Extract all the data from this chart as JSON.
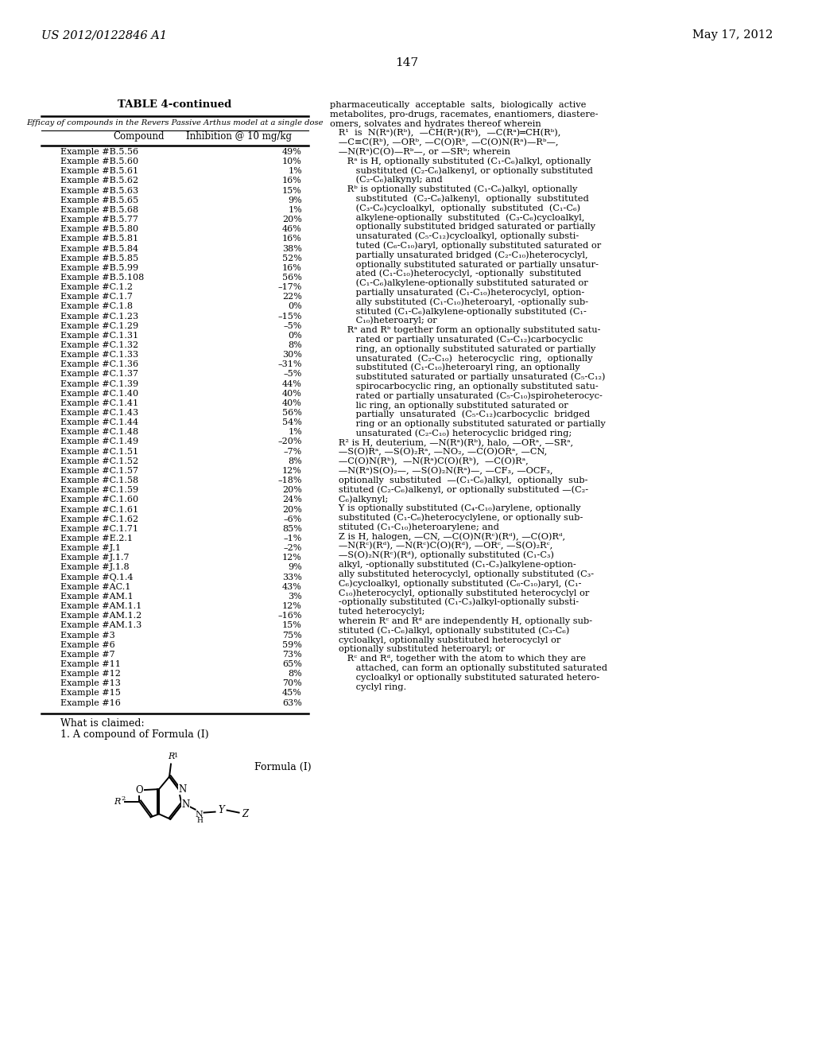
{
  "page_header_left": "US 2012/0122846 A1",
  "page_header_right": "May 17, 2012",
  "page_number": "147",
  "table_title": "TABLE 4-continued",
  "table_subtitle": "Efficay of compounds in the Revers Passive Arthus model at a single dose",
  "col1_header": "Compound",
  "col2_header": "Inhibition @ 10 mg/kg",
  "table_data": [
    [
      "Example #B.5.56",
      "49%"
    ],
    [
      "Example #B.5.60",
      "10%"
    ],
    [
      "Example #B.5.61",
      "1%"
    ],
    [
      "Example #B.5.62",
      "16%"
    ],
    [
      "Example #B.5.63",
      "15%"
    ],
    [
      "Example #B.5.65",
      "9%"
    ],
    [
      "Example #B.5.68",
      "1%"
    ],
    [
      "Example #B.5.77",
      "20%"
    ],
    [
      "Example #B.5.80",
      "46%"
    ],
    [
      "Example #B.5.81",
      "16%"
    ],
    [
      "Example #B.5.84",
      "38%"
    ],
    [
      "Example #B.5.85",
      "52%"
    ],
    [
      "Example #B.5.99",
      "16%"
    ],
    [
      "Example #B.5.108",
      "56%"
    ],
    [
      "Example #C.1.2",
      "–17%"
    ],
    [
      "Example #C.1.7",
      "22%"
    ],
    [
      "Example #C.1.8",
      "0%"
    ],
    [
      "Example #C.1.23",
      "–15%"
    ],
    [
      "Example #C.1.29",
      "–5%"
    ],
    [
      "Example #C.1.31",
      "0%"
    ],
    [
      "Example #C.1.32",
      "8%"
    ],
    [
      "Example #C.1.33",
      "30%"
    ],
    [
      "Example #C.1.36",
      "–31%"
    ],
    [
      "Example #C.1.37",
      "–5%"
    ],
    [
      "Example #C.1.39",
      "44%"
    ],
    [
      "Example #C.1.40",
      "40%"
    ],
    [
      "Example #C.1.41",
      "40%"
    ],
    [
      "Example #C.1.43",
      "56%"
    ],
    [
      "Example #C.1.44",
      "54%"
    ],
    [
      "Example #C.1.48",
      "1%"
    ],
    [
      "Example #C.1.49",
      "–20%"
    ],
    [
      "Example #C.1.51",
      "–7%"
    ],
    [
      "Example #C.1.52",
      "8%"
    ],
    [
      "Example #C.1.57",
      "12%"
    ],
    [
      "Example #C.1.58",
      "–18%"
    ],
    [
      "Example #C.1.59",
      "20%"
    ],
    [
      "Example #C.1.60",
      "24%"
    ],
    [
      "Example #C.1.61",
      "20%"
    ],
    [
      "Example #C.1.62",
      "–6%"
    ],
    [
      "Example #C.1.71",
      "85%"
    ],
    [
      "Example #E.2.1",
      "–1%"
    ],
    [
      "Example #J.1",
      "–2%"
    ],
    [
      "Example #J.1.7",
      "12%"
    ],
    [
      "Example #J.1.8",
      "9%"
    ],
    [
      "Example #Q.1.4",
      "33%"
    ],
    [
      "Example #AC.1",
      "43%"
    ],
    [
      "Example #AM.1",
      "3%"
    ],
    [
      "Example #AM.1.1",
      "12%"
    ],
    [
      "Example #AM.1.2",
      "–16%"
    ],
    [
      "Example #AM.1.3",
      "15%"
    ],
    [
      "Example #3",
      "75%"
    ],
    [
      "Example #6",
      "59%"
    ],
    [
      "Example #7",
      "73%"
    ],
    [
      "Example #11",
      "65%"
    ],
    [
      "Example #12",
      "8%"
    ],
    [
      "Example #13",
      "70%"
    ],
    [
      "Example #15",
      "45%"
    ],
    [
      "Example #16",
      "63%"
    ]
  ],
  "right_col_lines": [
    "pharmaceutically  acceptable  salts,  biologically  active",
    "metabolites, pro-drugs, racemates, enantiomers, diastere-",
    "omers, solvates and hydrates thereof wherein",
    "   R¹  is  N(Rᵃ)(Rᵇ),  —CH(Rᵃ)(Rᵇ),  —C(Rᵃ)═CH(Rᵇ),",
    "   —C≡C(Rᵇ), —ORᵇ, —C(O)Rᵇ, —C(O)N(Rᵃ)—Rᵇ—,",
    "   —N(Rᵃ)C(O)—Rᵇ—, or —SRᵇ; wherein",
    "      Rᵃ is H, optionally substituted (C₁-C₆)alkyl, optionally",
    "         substituted (C₂-C₆)alkenyl, or optionally substituted",
    "         (C₂-C₆)alkynyl; and",
    "      Rᵇ is optionally substituted (C₁-C₆)alkyl, optionally",
    "         substituted  (C₂-C₆)alkenyl,  optionally  substituted",
    "         (C₃-C₆)cycloalkyl,  optionally  substituted  (C₁-C₆)",
    "         alkylene-optionally  substituted  (C₃-C₆)cycloalkyl,",
    "         optionally substituted bridged saturated or partially",
    "         unsaturated (C₅-C₁₂)cycloalkyl, optionally substi-",
    "         tuted (C₆-C₁₀)aryl, optionally substituted saturated or",
    "         partially unsaturated bridged (C₂-C₁₀)heterocyclyl,",
    "         optionally substituted saturated or partially unsatur-",
    "         ated (C₁-C₁₀)heterocyclyl, -optionally  substituted",
    "         (C₁-C₆)alkylene-optionally substituted saturated or",
    "         partially unsaturated (C₁-C₁₀)heterocyclyl, option-",
    "         ally substituted (C₁-C₁₀)heteroaryl, -optionally sub-",
    "         stituted (C₁-C₆)alkylene-optionally substituted (C₁-",
    "         C₁₀)heteroaryl; or",
    "      Rᵃ and Rᵇ together form an optionally substituted satu-",
    "         rated or partially unsaturated (C₃-C₁₂)carbocyclic",
    "         ring, an optionally substituted saturated or partially",
    "         unsaturated  (C₂-C₁₀)  heterocyclic  ring,  optionally",
    "         substituted (C₁-C₁₀)heteroaryl ring, an optionally",
    "         substituted saturated or partially unsaturated (C₅-C₁₂)",
    "         spirocarbocyclic ring, an optionally substituted satu-",
    "         rated or partially unsaturated (C₅-C₁₀)spiroheterocyc-",
    "         lic ring, an optionally substituted saturated or",
    "         partially  unsaturated  (C₅-C₁₂)carbocyclic  bridged",
    "         ring or an optionally substituted saturated or partially",
    "         unsaturated (C₂-C₁₀) heterocyclic bridged ring;",
    "   R² is H, deuterium, —N(Rᵃ)(Rᵇ), halo, —ORᵃ, —SRᵃ,",
    "   —S(O)Rᵃ, —S(O)₂Rᵃ, —NO₂, —C(O)ORᵃ, —CN,",
    "   —C(O)N(Rᵇ),  —N(Rᵃ)C(O)(Rᵇ),  —C(O)Rᵃ,",
    "   —N(Rᵃ)S(O)₂—, —S(O)₂N(Rᵃ)—, —CF₃, —OCF₃,",
    "   optionally  substituted  —(C₁-C₆)alkyl,  optionally  sub-",
    "   stituted (C₂-C₆)alkenyl, or optionally substituted —(C₂-",
    "   C₆)alkynyl;",
    "   Y is optionally substituted (C₄-C₁₀)arylene, optionally",
    "   substituted (C₁-C₆)heterocyclylene, or optionally sub-",
    "   stituted (C₁-C₁₀)heteroarylene; and",
    "   Z is H, halogen, —CN, —C(O)N(Rᶜ)(Rᵈ), —C(O)Rᵈ,",
    "   —N(Rᶜ)(Rᵈ), —N(Rᶜ)C(O)(Rᵈ), —ORᶜ, —S(O)₂Rᶜ,",
    "   —S(O)₂N(Rᶜ)(Rᵈ), optionally substituted (C₁-C₃)",
    "   alkyl, -optionally substituted (C₁-C₃)alkylene-option-",
    "   ally substituted heterocyclyl, optionally substituted (C₃-",
    "   C₆)cycloalkyl, optionally substituted (C₆-C₁₀)aryl, (C₁-",
    "   C₁₀)heterocyclyl, optionally substituted heterocyclyl or",
    "   -optionally substituted (C₁-C₃)alkyl-optionally substi-",
    "   tuted heterocyclyl;",
    "   wherein Rᶜ and Rᵈ are independently H, optionally sub-",
    "   stituted (C₁-C₆)alkyl, optionally substituted (C₃-C₆)",
    "   cycloalkyl, optionally substituted heterocyclyl or",
    "   optionally substituted heteroaryl; or",
    "      Rᶜ and Rᵈ, together with the atom to which they are",
    "         attached, can form an optionally substituted saturated",
    "         cycloalkyl or optionally substituted saturated hetero-",
    "         cyclyl ring."
  ],
  "claims_text": [
    "What is claimed:",
    "1. A compound of Formula (I)"
  ],
  "formula_label": "Formula (I)",
  "bg": "#ffffff",
  "fg": "#000000"
}
